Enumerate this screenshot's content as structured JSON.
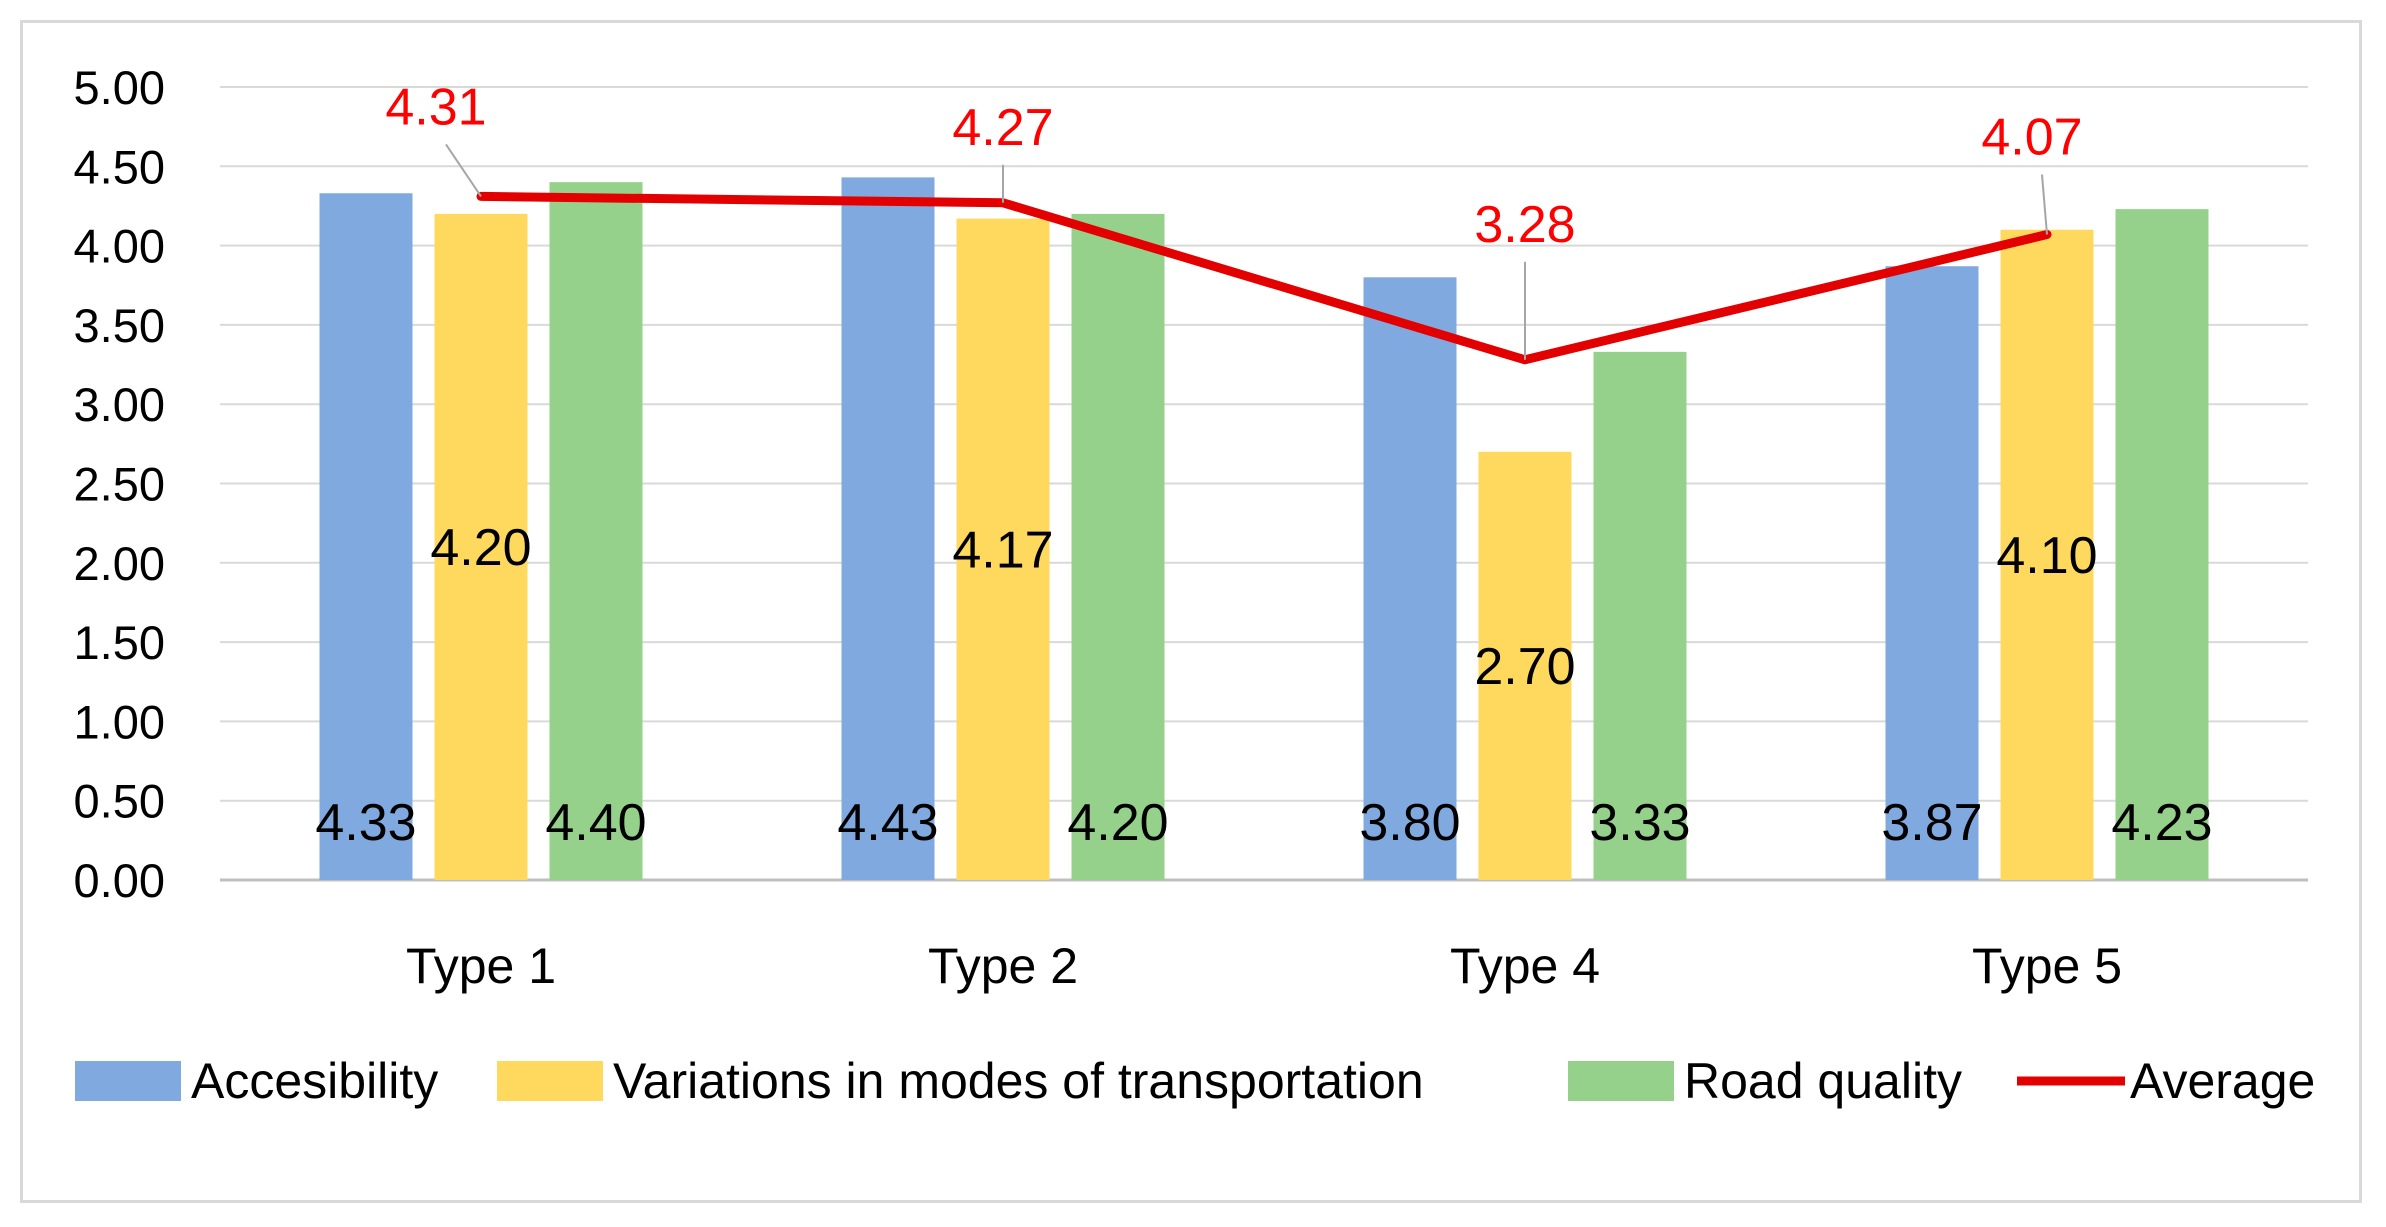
{
  "chart_data": {
    "type": "bar",
    "title": "",
    "xlabel": "",
    "ylabel": "",
    "ylim": [
      0,
      5
    ],
    "ytick_step": 0.5,
    "grid": true,
    "legend_position": "bottom",
    "categories": [
      "Type 1",
      "Type 2",
      "Type 4",
      "Type 5"
    ],
    "series": [
      {
        "name": "Accesibility",
        "kind": "bar",
        "color": "#7fa9df",
        "values": [
          4.33,
          4.43,
          3.8,
          3.87
        ],
        "labels": [
          "4.33",
          "4.43",
          "3.80",
          "3.87"
        ]
      },
      {
        "name": "Variations in modes of transportation",
        "kind": "bar",
        "color": "#ffd85e",
        "values": [
          4.2,
          4.17,
          2.7,
          4.1
        ],
        "labels": [
          "4.20",
          "4.17",
          "2.70",
          "4.10"
        ]
      },
      {
        "name": "Road quality",
        "kind": "bar",
        "color": "#95d18a",
        "values": [
          4.4,
          4.2,
          3.33,
          4.23
        ],
        "labels": [
          "4.40",
          "4.20",
          "3.33",
          "4.23"
        ]
      },
      {
        "name": "Average",
        "kind": "line",
        "color": "#e30000",
        "values": [
          4.31,
          4.27,
          3.28,
          4.07
        ],
        "labels": [
          "4.31",
          "4.27",
          "3.28",
          "4.07"
        ]
      }
    ],
    "yticks": [
      "0.00",
      "0.50",
      "1.00",
      "1.50",
      "2.00",
      "2.50",
      "3.00",
      "3.50",
      "4.00",
      "4.50",
      "5.00"
    ]
  }
}
